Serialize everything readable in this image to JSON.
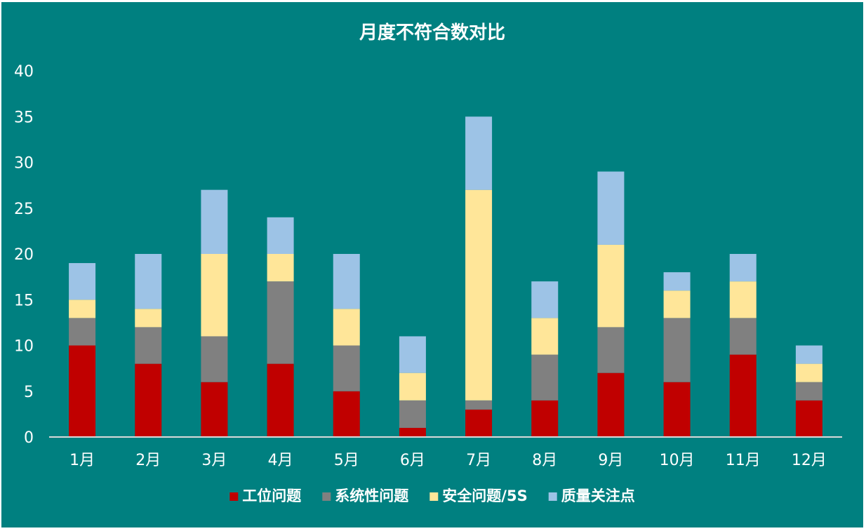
{
  "chart_data": {
    "type": "bar",
    "stacked": true,
    "title": "月度不符合数对比",
    "categories": [
      "1月",
      "2月",
      "3月",
      "4月",
      "5月",
      "6月",
      "7月",
      "8月",
      "9月",
      "10月",
      "11月",
      "12月"
    ],
    "series": [
      {
        "name": "工位问题",
        "color": "#C00000",
        "values": [
          10,
          8,
          6,
          8,
          5,
          1,
          3,
          4,
          7,
          6,
          9,
          4
        ]
      },
      {
        "name": "系统性问题",
        "color": "#808080",
        "values": [
          3,
          4,
          5,
          9,
          5,
          3,
          1,
          5,
          5,
          7,
          4,
          2
        ]
      },
      {
        "name": "安全问题/5S",
        "color": "#FFE699",
        "values": [
          2,
          2,
          9,
          3,
          4,
          3,
          23,
          4,
          9,
          3,
          4,
          2
        ]
      },
      {
        "name": "质量关注点",
        "color": "#9DC3E6",
        "values": [
          4,
          6,
          7,
          4,
          6,
          4,
          8,
          4,
          8,
          2,
          3,
          2
        ]
      }
    ],
    "yticks": [
      "0",
      "5",
      "10",
      "15",
      "20",
      "25",
      "30",
      "35",
      "40"
    ],
    "ylim": [
      0,
      40
    ],
    "grid": false,
    "legend_position": "bottom",
    "background_color": "#008080",
    "text_color": "#FFFFFF"
  }
}
